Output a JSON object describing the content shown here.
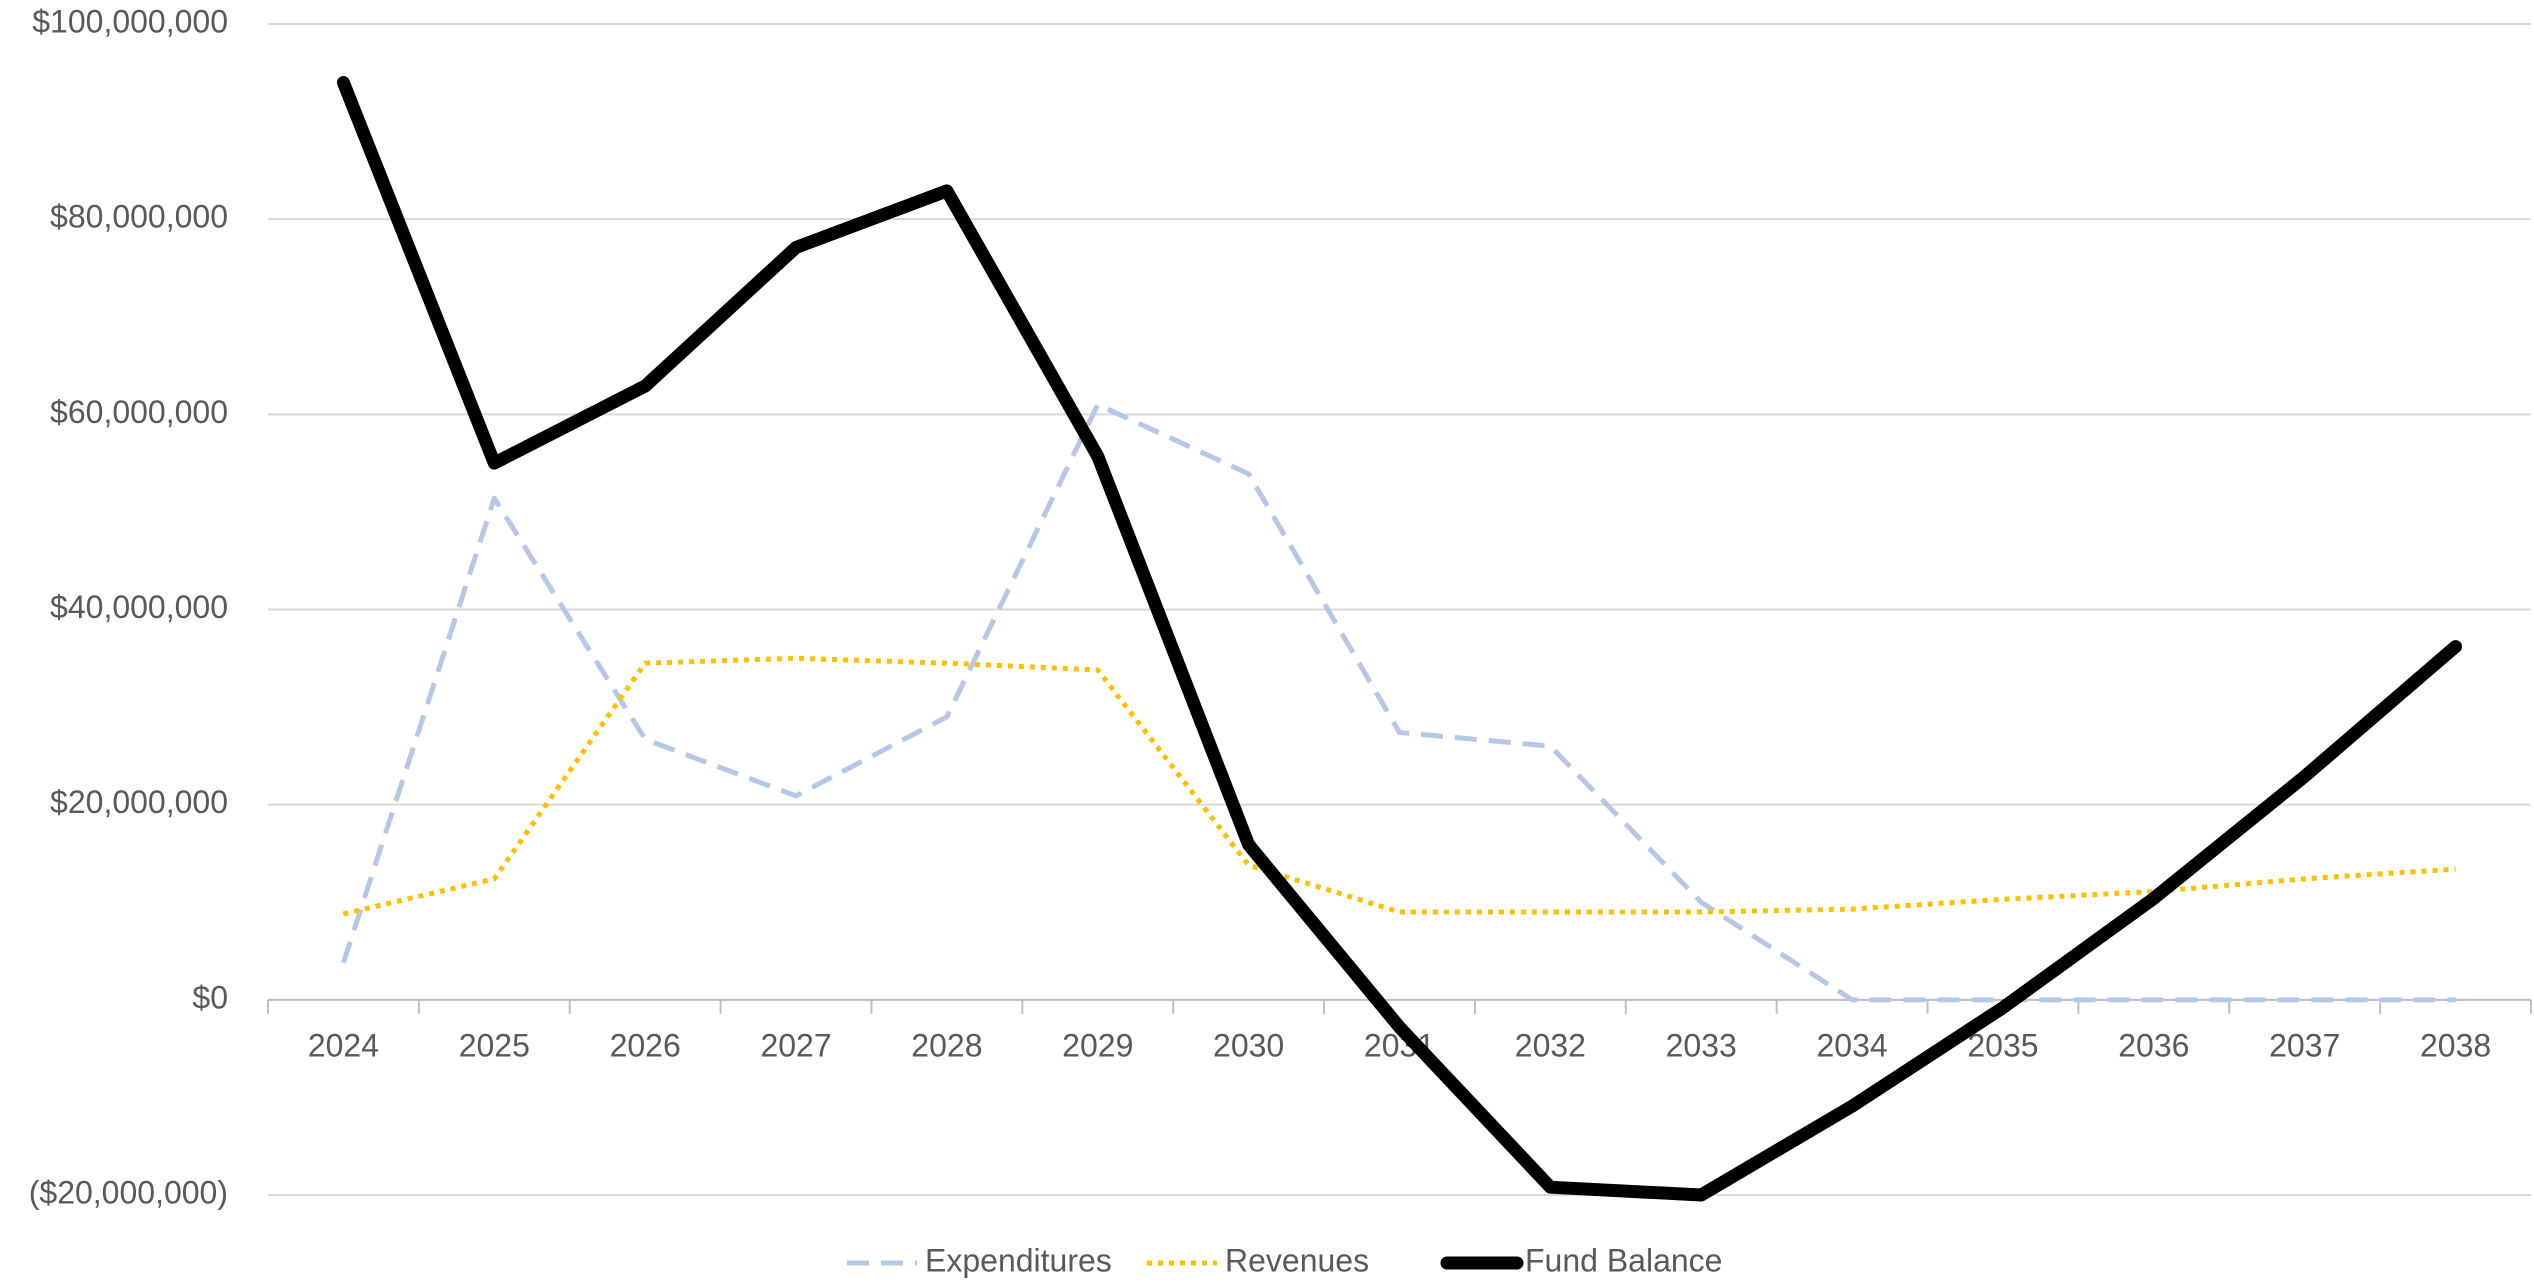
{
  "chart_data": {
    "type": "line",
    "categories": [
      "2024",
      "2025",
      "2026",
      "2027",
      "2028",
      "2029",
      "2030",
      "2031",
      "2032",
      "2033",
      "2034",
      "2035",
      "2036",
      "2037",
      "2038"
    ],
    "series": [
      {
        "name": "Expenditures",
        "color": "#b4c7e7",
        "dash": "dashed",
        "values": [
          3800000,
          51400000,
          26700000,
          20900000,
          29000000,
          61000000,
          53900000,
          27400000,
          26000000,
          10000000,
          0,
          0,
          0,
          0,
          0
        ]
      },
      {
        "name": "Revenues",
        "color": "#ffc000",
        "dash": "dotted",
        "values": [
          8800000,
          12400000,
          34500000,
          35000000,
          34500000,
          33800000,
          13800000,
          9000000,
          9000000,
          9000000,
          9300000,
          10300000,
          11100000,
          12400000,
          13400000
        ]
      },
      {
        "name": "Fund Balance",
        "color": "#000000",
        "dash": "solid",
        "values": [
          94000000,
          55000000,
          62900000,
          77100000,
          82900000,
          55700000,
          15900000,
          -2800000,
          -19200000,
          -20000000,
          -10900000,
          -800000,
          10400000,
          22900000,
          36200000
        ]
      }
    ],
    "ylim": [
      -20000000,
      100000000
    ],
    "yticks": [
      {
        "value": -20000000,
        "label": "($20,000,000)"
      },
      {
        "value": 0,
        "label": "$0"
      },
      {
        "value": 20000000,
        "label": "$20,000,000"
      },
      {
        "value": 40000000,
        "label": "$40,000,000"
      },
      {
        "value": 60000000,
        "label": "$60,000,000"
      },
      {
        "value": 80000000,
        "label": "$80,000,000"
      },
      {
        "value": 100000000,
        "label": "$100,000,000"
      }
    ],
    "grid": true,
    "legend": "bottom"
  }
}
